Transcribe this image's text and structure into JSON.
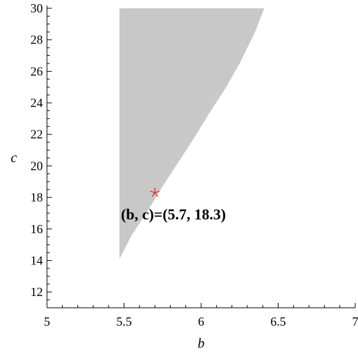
{
  "chart_data": {
    "type": "area",
    "xlabel": "b",
    "ylabel": "c",
    "xlim": [
      5,
      7
    ],
    "ylim": [
      11,
      30
    ],
    "x_ticks": [
      5,
      5.5,
      6,
      6.5,
      7
    ],
    "x_tick_labels": [
      "5",
      "5.5",
      "6",
      "6.5",
      "7"
    ],
    "y_ticks": [
      12,
      14,
      16,
      18,
      20,
      22,
      24,
      26,
      28,
      30
    ],
    "y_tick_labels": [
      "12",
      "14",
      "16",
      "18",
      "20",
      "22",
      "24",
      "26",
      "28",
      "30"
    ],
    "grid": false,
    "region": {
      "fill": "#c8c8c8",
      "left_boundary_b": 5.47,
      "lower_boundary": {
        "b": [
          5.47,
          5.55,
          5.65,
          5.75,
          5.85,
          5.95,
          6.05,
          6.15,
          6.25,
          6.35,
          6.41
        ],
        "c": [
          14.1,
          15.6,
          17.1,
          18.7,
          20.2,
          21.7,
          23.3,
          24.8,
          26.5,
          28.5,
          30.0
        ]
      }
    },
    "point": {
      "b": 5.7,
      "c": 18.3,
      "marker": "*",
      "color": "#e0303a"
    },
    "annotation": {
      "text": "(b, c)=(5.7, 18.3)",
      "b": 5.48,
      "c": 16.6
    }
  }
}
